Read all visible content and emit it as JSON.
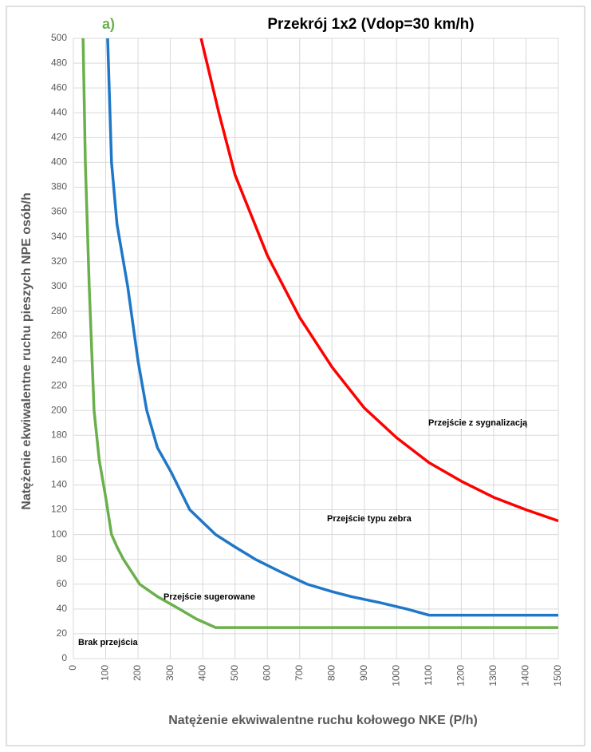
{
  "chart_data": {
    "type": "line",
    "title": "Przekrój 1x2 (Vdop=30 km/h)",
    "panel_label": "a)",
    "x_label": "Natężenie ekwiwalentne ruchu kołowego NKE (P/h)",
    "y_label": "Natężenie ekwiwalentne ruchu pieszych NPE osób/h",
    "annotations": [
      "Przejście z sygnalizacją",
      "Przejście typu zebra",
      "Przejście sugerowane",
      "Brak przejścia"
    ],
    "series": [
      {
        "color": "#ff0000",
        "x": [
          395,
          450,
          500,
          600,
          700,
          800,
          900,
          1000,
          1100,
          1200,
          1300,
          1400,
          1500
        ],
        "values": [
          500,
          440,
          390,
          325,
          275,
          235,
          202,
          178,
          158,
          143,
          130,
          120,
          111
        ]
      },
      {
        "color": "#1f77c8",
        "x": [
          106,
          118,
          135,
          168,
          200,
          227,
          260,
          303,
          360,
          440,
          500,
          563,
          640,
          723,
          800,
          859,
          950,
          1031,
          1100,
          1500
        ],
        "values": [
          500,
          400,
          350,
          300,
          240,
          200,
          170,
          150,
          120,
          100,
          90,
          80,
          70,
          60,
          54,
          50,
          45,
          40,
          35,
          35
        ]
      },
      {
        "color": "#6ab04c",
        "x": [
          30,
          37,
          49,
          64,
          80,
          100,
          118,
          135,
          155,
          180,
          205,
          260,
          328,
          380,
          440,
          1500
        ],
        "values": [
          500,
          400,
          300,
          200,
          160,
          130,
          100,
          90,
          80,
          70,
          60,
          50,
          40,
          32,
          25,
          25
        ]
      }
    ],
    "xlim": [
      0,
      1500
    ],
    "xticks": [
      0,
      100,
      200,
      300,
      400,
      500,
      600,
      700,
      800,
      900,
      1000,
      1100,
      1200,
      1300,
      1400,
      1500
    ],
    "ylim": [
      0,
      500
    ],
    "yticks": [
      0,
      20,
      40,
      60,
      80,
      100,
      120,
      140,
      160,
      180,
      200,
      220,
      240,
      260,
      280,
      300,
      320,
      340,
      360,
      380,
      400,
      420,
      440,
      460,
      480,
      500
    ],
    "grid": true
  }
}
